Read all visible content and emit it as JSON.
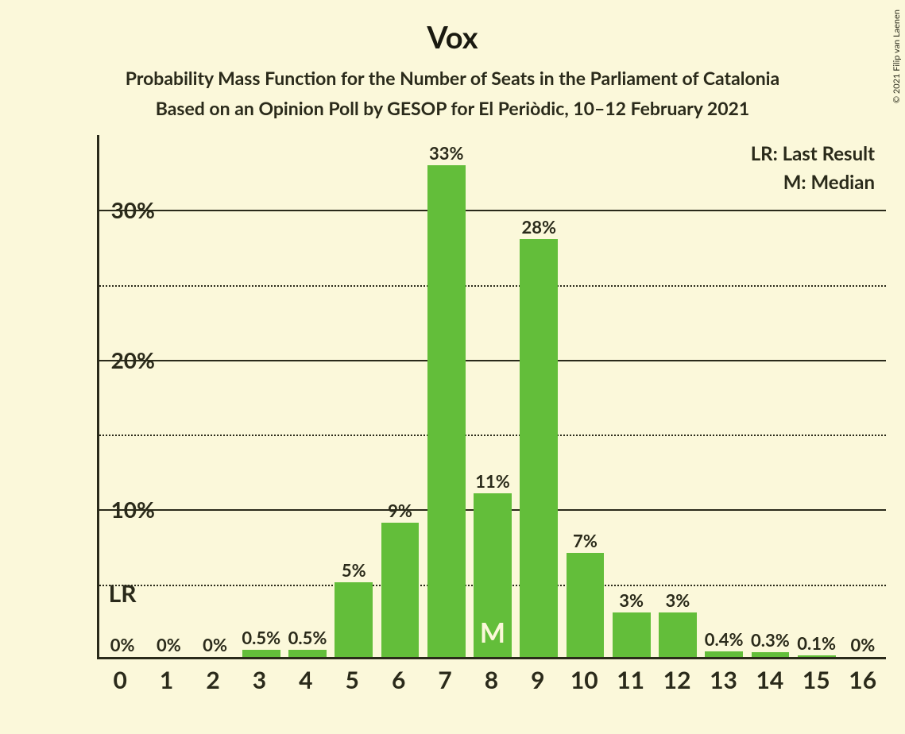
{
  "title": "Vox",
  "subtitle1": "Probability Mass Function for the Number of Seats in the Parliament of Catalonia",
  "subtitle2": "Based on an Opinion Poll by GESOP for El Periòdic, 10–12 February 2021",
  "copyright": "© 2021 Filip van Laenen",
  "legend": {
    "lr": "LR: Last Result",
    "m": "M: Median"
  },
  "chart": {
    "type": "bar",
    "bar_color": "#63be3a",
    "background_color": "#fbf8da",
    "axis_color": "#2a2a1a",
    "grid_major_color": "#2a2a1a",
    "grid_minor_color": "#2a2a1a",
    "ylim": [
      0,
      35
    ],
    "y_major_ticks": [
      10,
      20,
      30
    ],
    "y_major_labels": [
      "10%",
      "20%",
      "30%"
    ],
    "y_minor_ticks": [
      5,
      15,
      25
    ],
    "bar_width_ratio": 0.82,
    "title_fontsize": 38,
    "subtitle_fontsize": 23,
    "axis_label_fontsize": 30,
    "bar_label_fontsize": 22,
    "categories": [
      "0",
      "1",
      "2",
      "3",
      "4",
      "5",
      "6",
      "7",
      "8",
      "9",
      "10",
      "11",
      "12",
      "13",
      "14",
      "15",
      "16"
    ],
    "values": [
      0,
      0,
      0,
      0.5,
      0.5,
      5,
      9,
      33,
      11,
      28,
      7,
      3,
      3,
      0.4,
      0.3,
      0.1,
      0
    ],
    "bar_labels": [
      "0%",
      "0%",
      "0%",
      "0.5%",
      "0.5%",
      "5%",
      "9%",
      "33%",
      "11%",
      "28%",
      "7%",
      "3%",
      "3%",
      "0.4%",
      "0.3%",
      "0.1%",
      "0%"
    ],
    "lr_index": 0,
    "lr_marker": "LR",
    "median_index": 8,
    "median_marker": "M"
  }
}
